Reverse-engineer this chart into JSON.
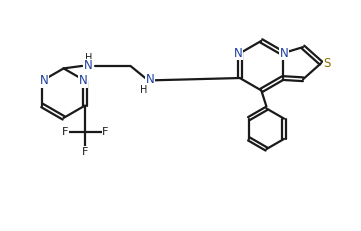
{
  "bg_color": "#ffffff",
  "lc": "#1a1a1a",
  "nc": "#1c3fa0",
  "sc": "#8b7000",
  "lw": 1.6,
  "dbl_off": 0.055,
  "fs": 8.5,
  "figsize": [
    3.61,
    2.31
  ],
  "dpi": 100,
  "xlim": [
    0,
    10.5
  ],
  "ylim": [
    0,
    6.2
  ]
}
